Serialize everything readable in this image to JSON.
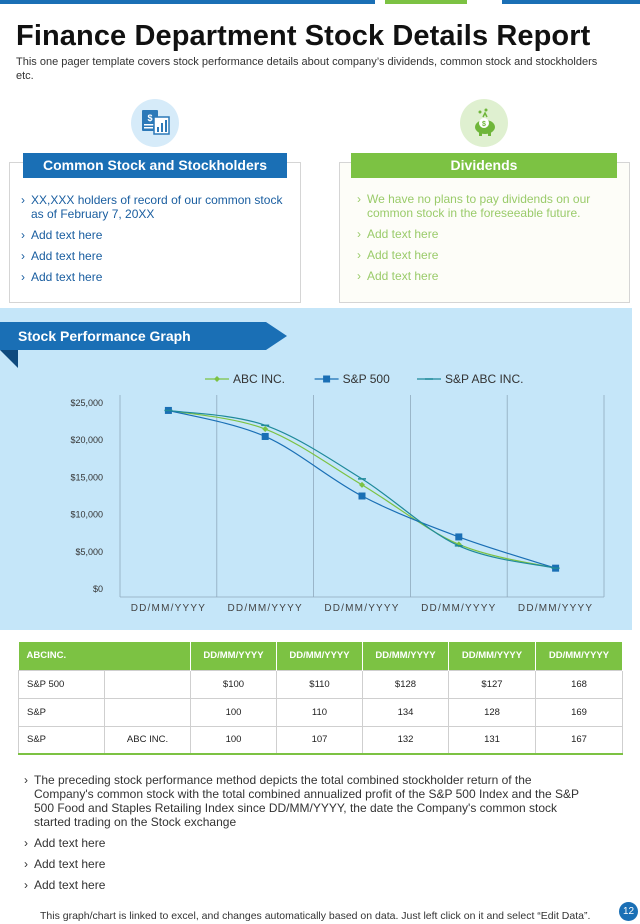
{
  "page": {
    "title": "Finance Department Stock Details Report",
    "subtitle": "This one pager template covers stock performance details about company’s dividends, common stock and stockholders etc."
  },
  "colors": {
    "blue": "#1a6fb5",
    "green": "#7cc243",
    "panel": "#c5e6f9"
  },
  "icons": {
    "common_stock": "document-chart-icon",
    "dividends": "piggy-bank-dollar-icon"
  },
  "common_stock": {
    "header": "Common Stock and Stockholders",
    "items": [
      "XX,XXX holders of record of our common stock as of February 7, 20XX",
      "Add text here",
      "Add text here",
      "Add text here"
    ]
  },
  "dividends": {
    "header": "Dividends",
    "items": [
      "We have no plans to pay dividends on our common stock in the foreseeable future.",
      "Add text here",
      "Add text here",
      "Add text here"
    ]
  },
  "chart_section": {
    "title": "Stock Performance Graph"
  },
  "chart_data": {
    "type": "line",
    "categories": [
      "DD/MM/YYYY",
      "DD/MM/YYYY",
      "DD/MM/YYYY",
      "DD/MM/YYYY",
      "DD/MM/YYYY"
    ],
    "y_tick_labels": [
      "$25,000",
      "$20,000",
      "$15,000",
      "$10,000",
      "$5,000",
      "$0"
    ],
    "ylim": [
      0,
      25000
    ],
    "grid": "vertical",
    "legend": "top",
    "series": [
      {
        "name": "ABC INC.",
        "color": "#7cc243",
        "marker": "diamond",
        "values": [
          24000,
          21500,
          14000,
          6000,
          2800
        ]
      },
      {
        "name": "S&P 500",
        "color": "#1a6fb5",
        "marker": "square",
        "values": [
          24000,
          20500,
          12500,
          7000,
          2800
        ]
      },
      {
        "name": "S&P ABC INC.",
        "color": "#1f8a9a",
        "marker": "dash",
        "values": [
          24000,
          22000,
          14800,
          5800,
          2800
        ]
      }
    ]
  },
  "table": {
    "headers": [
      "ABCINC.",
      "",
      "DD/MM/YYYY",
      "DD/MM/YYYY",
      "DD/MM/YYYY",
      "DD/MM/YYYY",
      "DD/MM/YYYY"
    ],
    "rows": [
      [
        "S&P 500",
        "",
        "$100",
        "$110",
        "$128",
        "$127",
        "168"
      ],
      [
        "S&P",
        "",
        "100",
        "110",
        "134",
        "128",
        "169"
      ],
      [
        "S&P",
        "ABC INC.",
        "100",
        "107",
        "132",
        "131",
        "167"
      ]
    ]
  },
  "bottom_list": [
    "The preceding stock performance method depicts the total combined stockholder return of the Company's common stock with the total combined annualized profit of the S&P 500 Index and the S&P 500 Food and Staples Retailing Index since DD/MM/YYYY, the date the Company's common stock started trading on the Stock exchange",
    "Add text here",
    "Add text here",
    "Add text here"
  ],
  "footer": {
    "note": "This graph/chart is linked to excel, and changes automatically based on data. Just left click on it and select “Edit Data”.",
    "page_number": "12"
  }
}
